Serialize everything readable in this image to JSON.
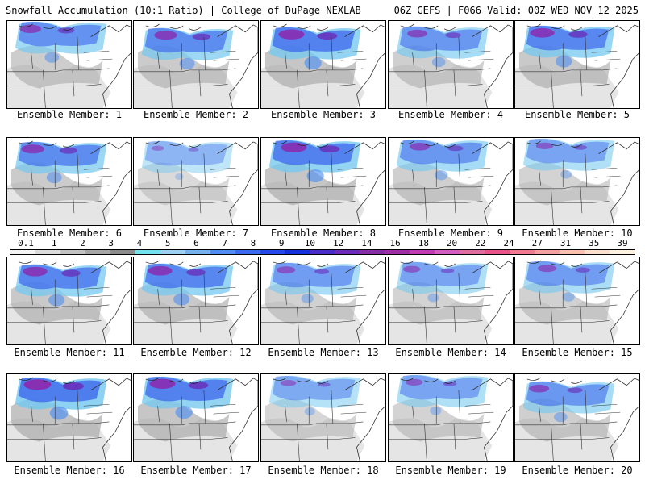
{
  "header": {
    "title_left": "Snowfall Accumulation (10:1 Ratio) | College of DuPage NEXLAB",
    "title_right": "06Z GEFS | F066 Valid: 00Z WED NOV 12 2025"
  },
  "panels": [
    {
      "label": "Ensemble Member: 1",
      "intensity": 0.75
    },
    {
      "label": "Ensemble Member: 2",
      "intensity": 0.8
    },
    {
      "label": "Ensemble Member: 3",
      "intensity": 0.9
    },
    {
      "label": "Ensemble Member: 4",
      "intensity": 0.7
    },
    {
      "label": "Ensemble Member: 5",
      "intensity": 0.85
    },
    {
      "label": "Ensemble Member: 6",
      "intensity": 0.8
    },
    {
      "label": "Ensemble Member: 7",
      "intensity": 0.45
    },
    {
      "label": "Ensemble Member: 8",
      "intensity": 0.9
    },
    {
      "label": "Ensemble Member: 9",
      "intensity": 0.7
    },
    {
      "label": "Ensemble Member: 10",
      "intensity": 0.6
    },
    {
      "label": "Ensemble Member: 11",
      "intensity": 0.85
    },
    {
      "label": "Ensemble Member: 12",
      "intensity": 0.85
    },
    {
      "label": "Ensemble Member: 13",
      "intensity": 0.65
    },
    {
      "label": "Ensemble Member: 14",
      "intensity": 0.6
    },
    {
      "label": "Ensemble Member: 15",
      "intensity": 0.65
    },
    {
      "label": "Ensemble Member: 16",
      "intensity": 0.95
    },
    {
      "label": "Ensemble Member: 17",
      "intensity": 0.9
    },
    {
      "label": "Ensemble Member: 18",
      "intensity": 0.55
    },
    {
      "label": "Ensemble Member: 19",
      "intensity": 0.6
    },
    {
      "label": "Ensemble Member: 20",
      "intensity": 0.7
    }
  ],
  "colorbar": {
    "labels": [
      "0.1",
      "1",
      "2",
      "3",
      "4",
      "5",
      "6",
      "7",
      "8",
      "9",
      "10",
      "12",
      "14",
      "16",
      "18",
      "20",
      "22",
      "24",
      "27",
      "31",
      "35",
      "39"
    ],
    "colors": [
      "#f4f4f4",
      "#dcdcdc",
      "#c2c2c2",
      "#a6a6a6",
      "#8c8c8c",
      "#75e0ee",
      "#9fd2f2",
      "#74b3f0",
      "#4e8ef0",
      "#3a6af0",
      "#2449e8",
      "#1530d8",
      "#4a2cc8",
      "#6a2cb8",
      "#862ca8",
      "#a22ca8",
      "#bf3cb4",
      "#d25cc0",
      "#de6ea0",
      "#e8548a",
      "#f07a90",
      "#f6a0a0",
      "#fac0b0",
      "#fde0cc",
      "#fff2e0"
    ]
  },
  "colors": {
    "panel_border": "#000000",
    "map_lines": "#333333"
  }
}
